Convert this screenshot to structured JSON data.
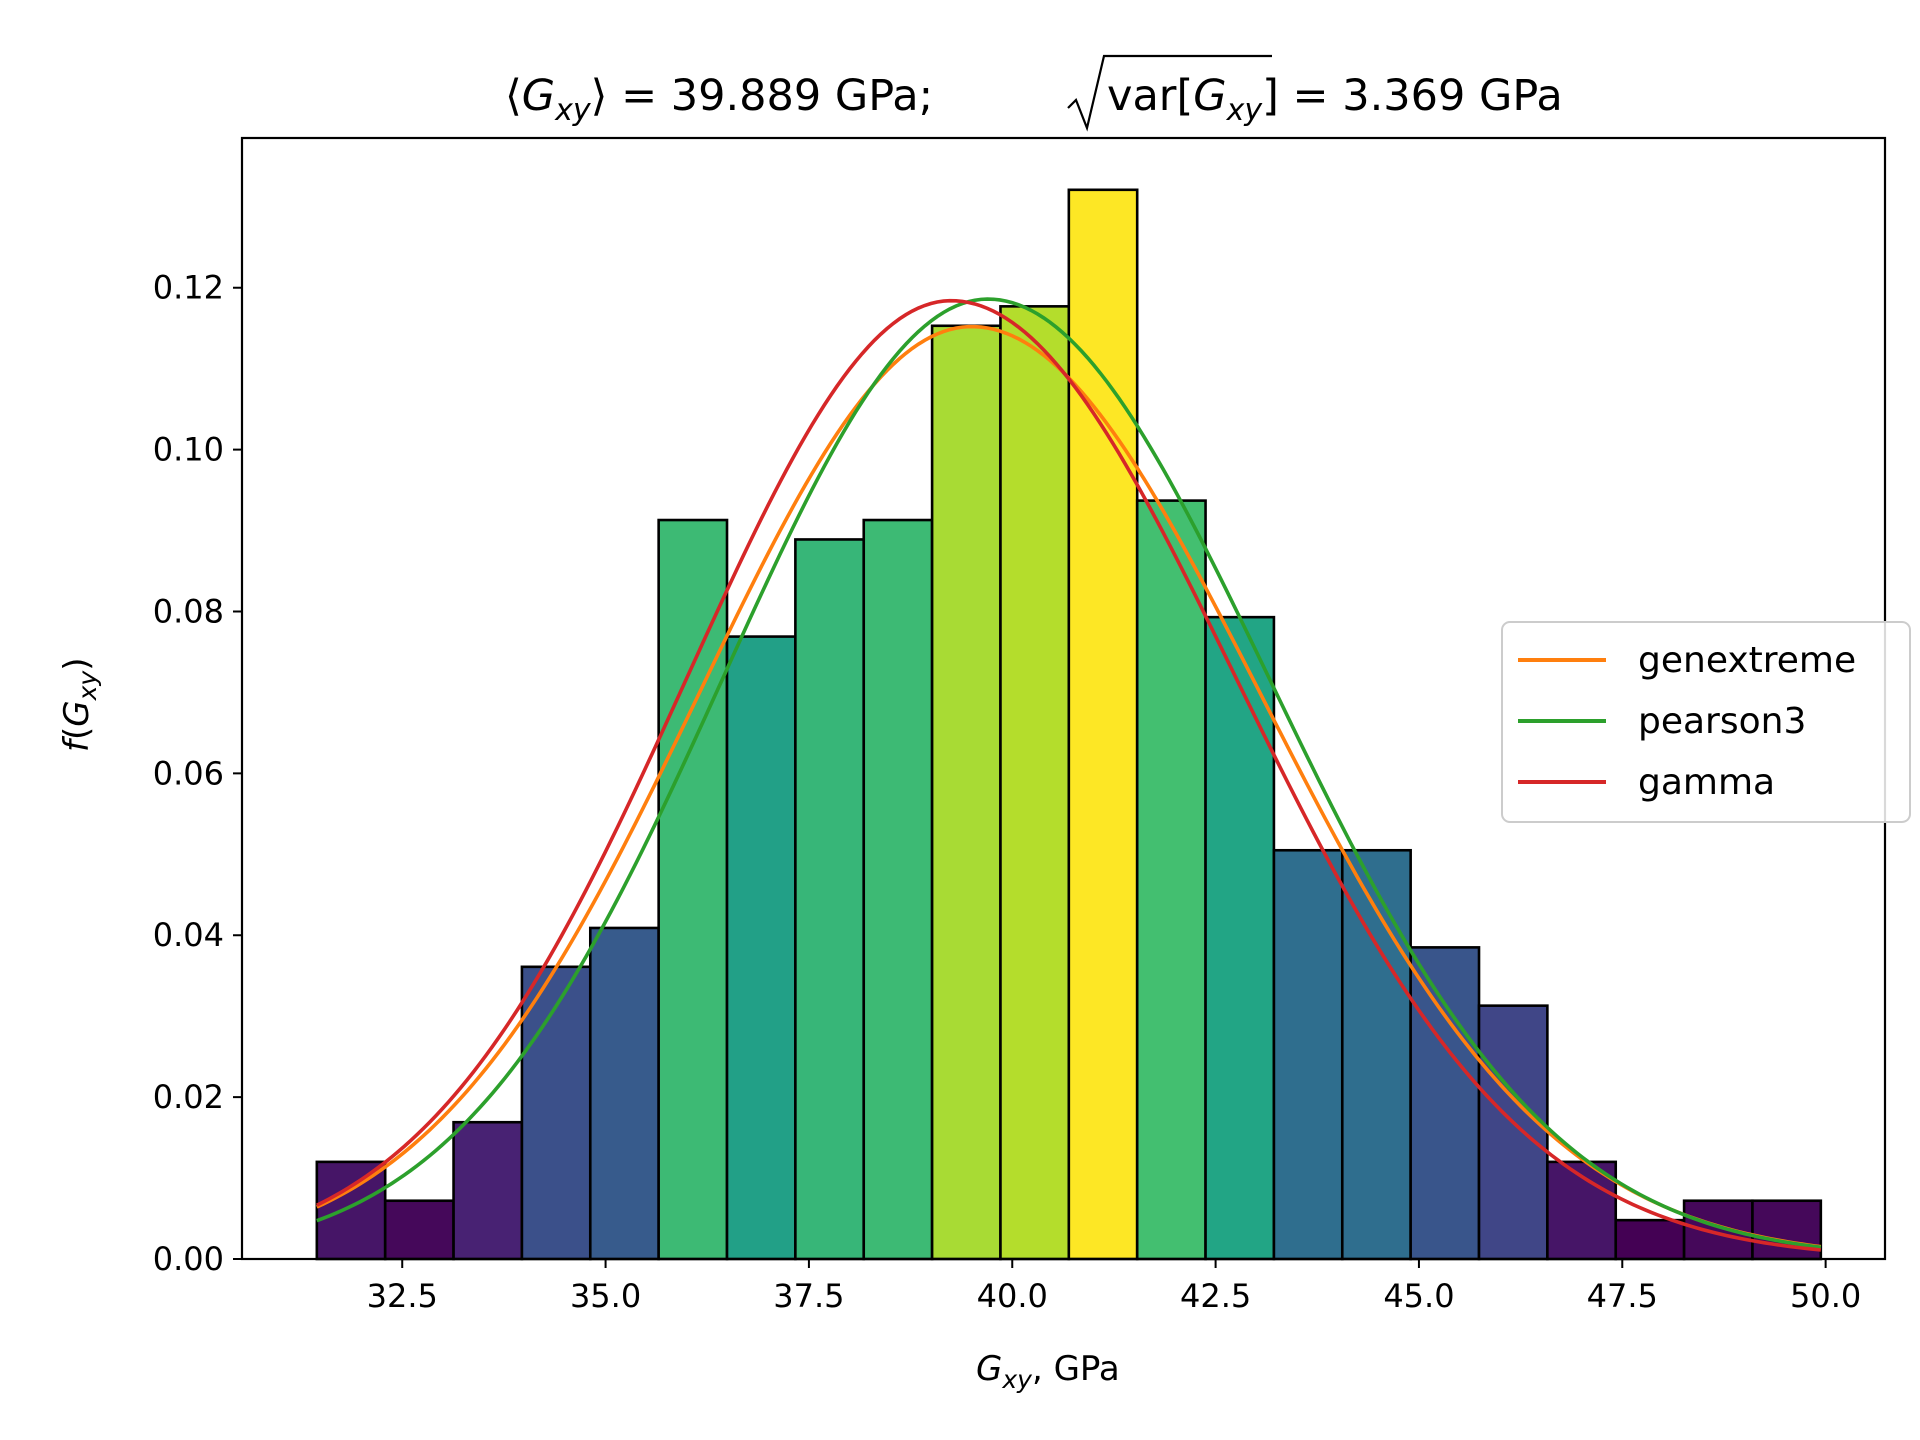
{
  "chart_data": {
    "type": "bar",
    "title_parts": {
      "mean_lhs_open": "⟨",
      "mean_symbol": "G",
      "mean_sub": "xy",
      "mean_lhs_close": "⟩",
      "mean_value": " = 39.889 GPa;",
      "std_func": "var",
      "std_open": "[",
      "std_symbol": "G",
      "std_sub": "xy",
      "std_close": "]",
      "std_value": " = 3.369 GPa"
    },
    "xlabel_parts": {
      "symbol": "G",
      "sub": "xy",
      "rest": ", GPa"
    },
    "ylabel_parts": {
      "f": "f",
      "open": "(",
      "symbol": "G",
      "sub": "xy",
      "close": ")"
    },
    "xlim": [
      30.53,
      50.73
    ],
    "ylim": [
      0,
      0.1385
    ],
    "xticks": [
      32.5,
      35.0,
      37.5,
      40.0,
      42.5,
      45.0,
      47.5,
      50.0
    ],
    "xtick_labels": [
      "32.5",
      "35.0",
      "37.5",
      "40.0",
      "42.5",
      "45.0",
      "47.5",
      "50.0"
    ],
    "yticks": [
      0.0,
      0.02,
      0.04,
      0.06,
      0.08,
      0.1,
      0.12
    ],
    "ytick_labels": [
      "0.00",
      "0.02",
      "0.04",
      "0.06",
      "0.08",
      "0.10",
      "0.12"
    ],
    "bin_start": 31.45,
    "bin_width": 0.8405,
    "values": [
      0.012,
      0.0072,
      0.0169,
      0.0361,
      0.0409,
      0.0913,
      0.0769,
      0.0889,
      0.0913,
      0.1153,
      0.1177,
      0.1321,
      0.0937,
      0.0793,
      0.0505,
      0.0505,
      0.0385,
      0.0313,
      0.012,
      0.0048,
      0.0072,
      0.0072
    ],
    "colormap": "viridis",
    "series": [
      {
        "name": "genextreme",
        "color": "#ff7f0e",
        "mean": 39.5,
        "peak": 0.1152,
        "sigma_left": 3.35,
        "sigma_right": 3.55
      },
      {
        "name": "pearson3",
        "color": "#2ca02c",
        "mean": 39.7,
        "peak": 0.1186,
        "sigma_left": 3.25,
        "sigma_right": 3.45
      },
      {
        "name": "gamma",
        "color": "#d62728",
        "mean": 39.25,
        "peak": 0.1184,
        "sigma_left": 3.25,
        "sigma_right": 3.5
      }
    ],
    "legend_position": "center-right",
    "grid": false
  }
}
